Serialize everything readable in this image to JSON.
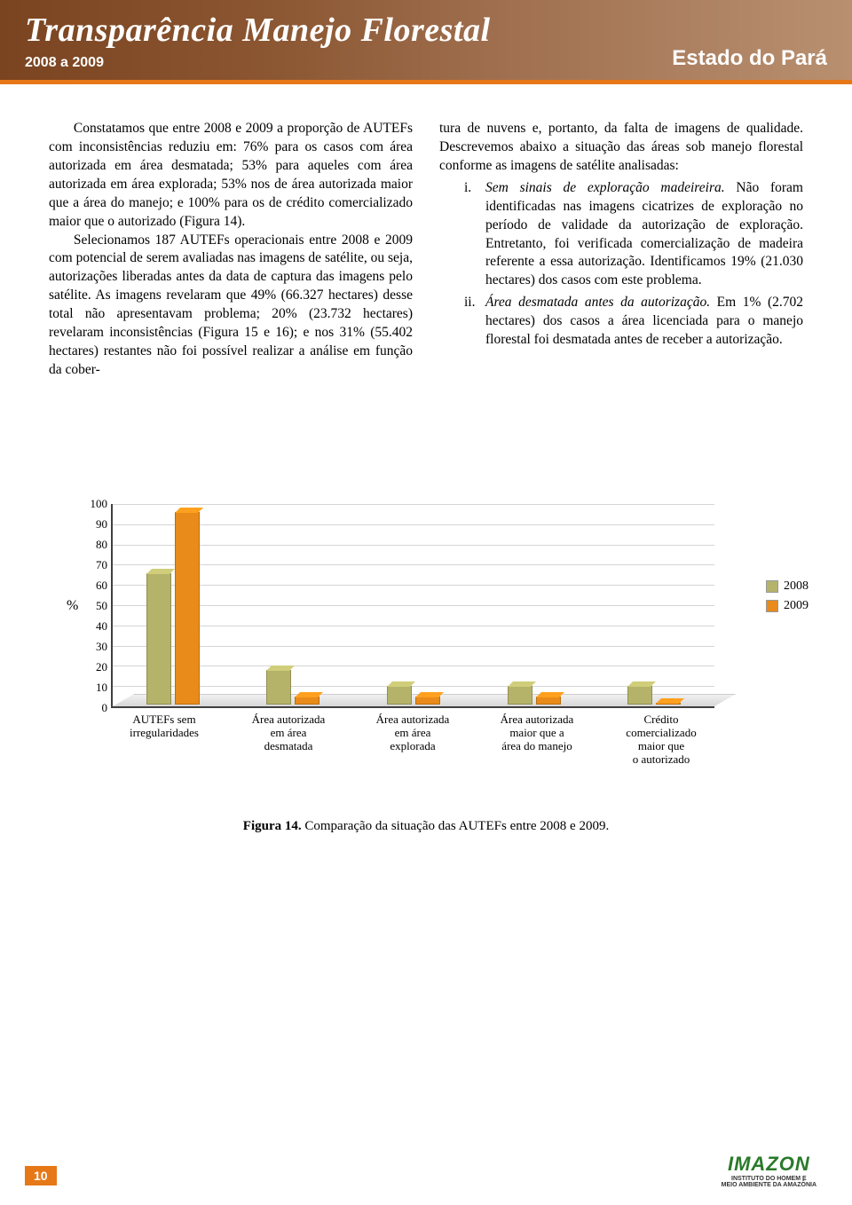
{
  "header": {
    "title": "Transparência Manejo Florestal",
    "period": "2008 a 2009",
    "region": "Estado do Pará"
  },
  "body": {
    "para1": "Constatamos que entre 2008 e 2009 a proporção de AUTEFs com inconsistências reduziu em: 76% para os casos com área autorizada em área desmatada; 53% para aqueles com área autorizada em área explorada; 53% nos de área autorizada maior que a área do manejo; e 100% para os de crédito comercializado maior que o autorizado (Figura 14).",
    "para2": "Selecionamos 187 AUTEFs operacionais entre 2008 e 2009 com potencial de serem avaliadas nas imagens de satélite, ou seja, autorizações liberadas antes da data de captura das imagens pelo satélite. As imagens revelaram que 49% (66.327 hectares) desse total não apresentavam problema; 20% (23.732 hectares) revelaram inconsistências (Figura 15 e 16); e nos 31% (55.402 hectares) restantes não foi possível realizar a análise em função da cober-",
    "para3_start": "tura de nuvens e, portanto, da falta de imagens de qualidade. Descrevemos abaixo a situação das áreas sob manejo florestal conforme as imagens de satélite analisadas:",
    "item_i_label_italic": "Sem sinais de exploração madeireira.",
    "item_i_rest": " Não foram identificadas nas imagens cicatrizes de exploração no período de validade da autorização de exploração. Entretanto, foi verificada comercialização de madeira referente a essa autorização. Identificamos 19% (21.030 hectares) dos casos com este problema.",
    "item_ii_label_italic": "Área desmatada antes da autorização.",
    "item_ii_rest": " Em 1% (2.702 hectares) dos casos a área licenciada para o manejo florestal foi desmatada antes de receber a autorização."
  },
  "chart": {
    "type": "bar",
    "y_label": "%",
    "ylim": [
      0,
      100
    ],
    "ytick_step": 10,
    "series": [
      {
        "label": "2008",
        "color": "#b5b36a"
      },
      {
        "label": "2009",
        "color": "#e88b1a"
      }
    ],
    "categories": [
      {
        "label": "AUTEFs sem\nirregularidades",
        "values": [
          65,
          95
        ]
      },
      {
        "label": "Área autorizada\nem área\ndesmatada",
        "values": [
          17,
          4
        ]
      },
      {
        "label": "Área autorizada\nem área\nexplorada",
        "values": [
          9,
          4
        ]
      },
      {
        "label": "Área autorizada\nmaior que a\nárea do manejo",
        "values": [
          9,
          4
        ]
      },
      {
        "label": "Crédito\ncomercializado\nmaior que\no autorizado",
        "values": [
          9,
          0
        ]
      }
    ],
    "grid_color": "#d5d5d5",
    "axis_color": "#404040",
    "caption_bold": "Figura 14.",
    "caption_rest": " Comparação da situação das AUTEFs entre 2008 e 2009."
  },
  "footer": {
    "page": "10",
    "logo_name": "IMAZON",
    "logo_sub1": "INSTITUTO DO HOMEM E",
    "logo_sub2": "MEIO AMBIENTE DA AMAZÔNIA"
  }
}
